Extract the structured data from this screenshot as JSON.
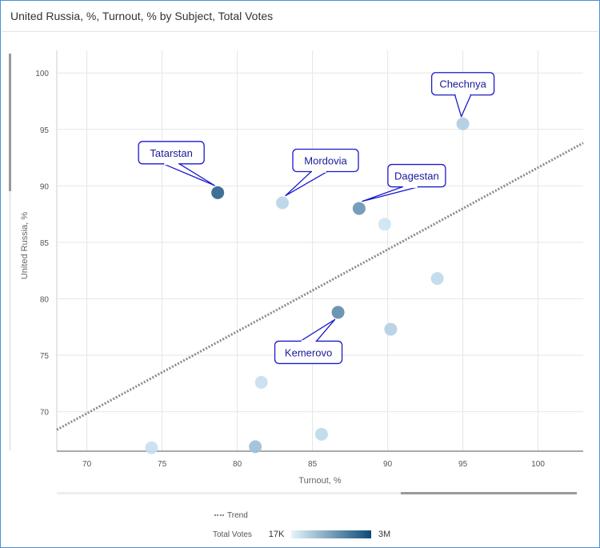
{
  "header": {
    "title": "United Russia, %, Turnout, % by Subject, Total Votes"
  },
  "colors": {
    "trend": "#8a8a8a",
    "callout_border": "#1a1acc",
    "callout_text": "#1a1a9a",
    "scale_low": "#d6ecfb",
    "scale_high": "#0c4a78"
  },
  "chart_data": {
    "type": "scatter",
    "title": "United Russia, %, Turnout, % by Subject, Total Votes",
    "xlabel": "Turnout, %",
    "ylabel": "United Russia, %",
    "xlim": [
      68,
      103
    ],
    "ylim": [
      66.5,
      102
    ],
    "x_ticks": [
      70,
      75,
      80,
      85,
      90,
      95,
      100
    ],
    "y_ticks": [
      70,
      75,
      80,
      85,
      90,
      95,
      100
    ],
    "grid": true,
    "color_scale": {
      "label": "Total Votes",
      "min_label": "17K",
      "max_label": "3M"
    },
    "points": [
      {
        "label": "Chechnya",
        "x": 95.0,
        "y": 95.5,
        "intensity": 0.2
      },
      {
        "label": "Tatarstan",
        "x": 78.7,
        "y": 89.4,
        "intensity": 0.85
      },
      {
        "label": "Mordovia",
        "x": 83.0,
        "y": 88.5,
        "intensity": 0.15
      },
      {
        "label": "Dagestan",
        "x": 88.1,
        "y": 88.0,
        "intensity": 0.55
      },
      {
        "label": "",
        "x": 89.8,
        "y": 86.6,
        "intensity": 0.05
      },
      {
        "label": "",
        "x": 93.3,
        "y": 81.8,
        "intensity": 0.12
      },
      {
        "label": "Kemerovo",
        "x": 86.7,
        "y": 78.8,
        "intensity": 0.6
      },
      {
        "label": "",
        "x": 90.2,
        "y": 77.3,
        "intensity": 0.18
      },
      {
        "label": "",
        "x": 81.6,
        "y": 72.6,
        "intensity": 0.08
      },
      {
        "label": "",
        "x": 85.6,
        "y": 68.0,
        "intensity": 0.12
      },
      {
        "label": "",
        "x": 74.3,
        "y": 66.8,
        "intensity": 0.08
      },
      {
        "label": "",
        "x": 81.2,
        "y": 66.9,
        "intensity": 0.28
      }
    ],
    "trend": {
      "label": "Trend",
      "x0": 68,
      "y0": 68.4,
      "x1": 103,
      "y1": 93.8
    }
  }
}
